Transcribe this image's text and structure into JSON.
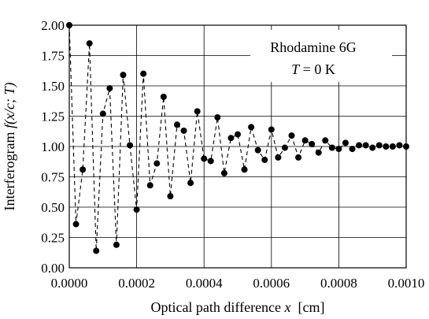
{
  "chart_data": {
    "type": "line",
    "xlabel_prefix": "Optical path difference",
    "xlabel_var": "x",
    "xlabel_unit": "[cm]",
    "ylabel_prefix": "Interferogram",
    "ylabel_func": "f",
    "ylabel_args": "(x/c; T)",
    "annotation_line1": "Rhodamine 6G",
    "annotation_line2_var": "T",
    "annotation_line2_rest": " = 0 K",
    "xlim": [
      0,
      0.001
    ],
    "ylim": [
      0,
      2
    ],
    "x_ticks": [
      0,
      0.0002,
      0.0004,
      0.0006,
      0.0008,
      0.001
    ],
    "x_tick_labels": [
      "0.0000",
      "0.0002",
      "0.0004",
      "0.0006",
      "0.0008",
      "0.0010"
    ],
    "y_ticks": [
      0,
      0.25,
      0.5,
      0.75,
      1.0,
      1.25,
      1.5,
      1.75,
      2.0
    ],
    "y_tick_labels": [
      "0.00",
      "0.25",
      "0.50",
      "0.75",
      "1.00",
      "1.25",
      "1.50",
      "1.75",
      "2.00"
    ],
    "grid": true,
    "series": [
      {
        "x": [
          0.0,
          2e-05,
          4e-05,
          6e-05,
          8e-05,
          0.0001,
          0.00012,
          0.00014,
          0.00016,
          0.00018,
          0.0002,
          0.00022,
          0.00024,
          0.00026,
          0.00028,
          0.0003,
          0.00032,
          0.00034,
          0.00036,
          0.00038,
          0.0004,
          0.00042,
          0.00044,
          0.00046,
          0.00048,
          0.0005,
          0.00052,
          0.00054,
          0.00056,
          0.00058,
          0.0006,
          0.00062,
          0.00064,
          0.00066,
          0.00068,
          0.0007,
          0.00072,
          0.00074,
          0.00076,
          0.00078,
          0.0008,
          0.00082,
          0.00084,
          0.00086,
          0.00088,
          0.0009,
          0.00092,
          0.00094,
          0.00096,
          0.00098,
          0.001
        ],
        "y": [
          2.0,
          0.36,
          0.81,
          1.85,
          0.14,
          1.27,
          1.48,
          0.19,
          1.59,
          1.01,
          0.48,
          1.6,
          0.68,
          0.86,
          1.41,
          0.59,
          1.18,
          1.13,
          0.7,
          1.29,
          0.9,
          0.88,
          1.24,
          0.78,
          1.07,
          1.1,
          0.81,
          1.16,
          0.97,
          0.89,
          1.14,
          0.91,
          0.99,
          1.09,
          0.91,
          1.05,
          1.02,
          0.95,
          1.05,
          0.99,
          0.98,
          1.03,
          0.98,
          1.01,
          1.01,
          0.99,
          1.01,
          1.0,
          1.0,
          1.01,
          1.0
        ]
      }
    ]
  }
}
